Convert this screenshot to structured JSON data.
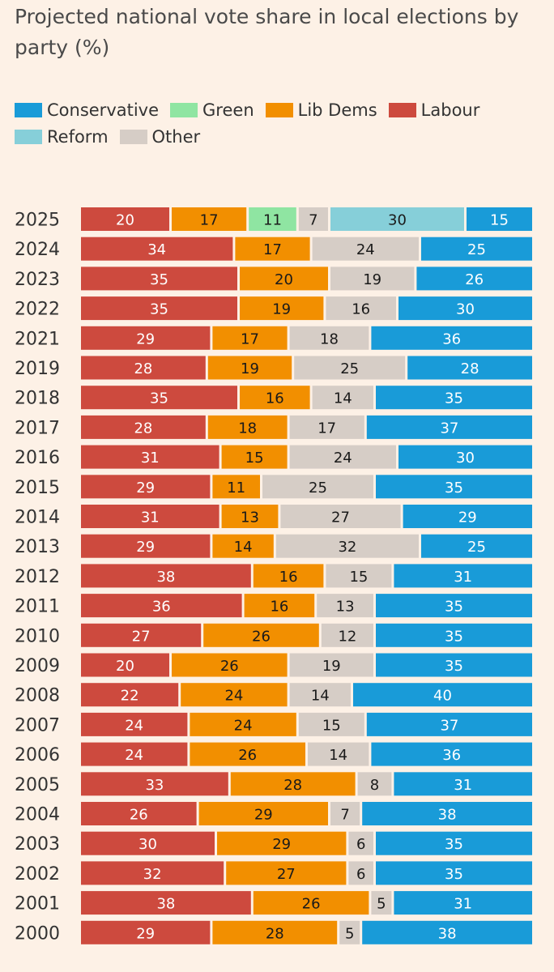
{
  "title": "Projected national vote share in local elections by party (%)",
  "colors": {
    "Conservative": "#199bd8",
    "Green": "#8fe5a2",
    "Lib Dems": "#f28f00",
    "Labour": "#cd4a3e",
    "Reform": "#86cfd9",
    "Other": "#d6cdc6"
  },
  "legend": [
    "Conservative",
    "Green",
    "Lib Dems",
    "Labour",
    "Reform",
    "Other"
  ],
  "chart_data": {
    "type": "bar",
    "orientation": "horizontal",
    "stacked": true,
    "title": "Projected national vote share in local elections by party (%)",
    "legend_position": "top",
    "grid": false,
    "categories": [
      "2025",
      "2024",
      "2023",
      "2022",
      "2021",
      "2019",
      "2018",
      "2017",
      "2016",
      "2015",
      "2014",
      "2013",
      "2012",
      "2011",
      "2010",
      "2009",
      "2008",
      "2007",
      "2006",
      "2005",
      "2004",
      "2003",
      "2002",
      "2001",
      "2000"
    ],
    "stack_order": [
      "Labour",
      "Lib Dems",
      "Green",
      "Other",
      "Reform",
      "Conservative"
    ],
    "series": [
      {
        "name": "Labour",
        "values": [
          20,
          34,
          35,
          35,
          29,
          28,
          35,
          28,
          31,
          29,
          31,
          29,
          38,
          36,
          27,
          20,
          22,
          24,
          24,
          33,
          26,
          30,
          32,
          38,
          29
        ]
      },
      {
        "name": "Lib Dems",
        "values": [
          17,
          17,
          20,
          19,
          17,
          19,
          16,
          18,
          15,
          11,
          13,
          14,
          16,
          16,
          26,
          26,
          24,
          24,
          26,
          28,
          29,
          29,
          27,
          26,
          28
        ]
      },
      {
        "name": "Green",
        "values": [
          11,
          null,
          null,
          null,
          null,
          null,
          null,
          null,
          null,
          null,
          null,
          null,
          null,
          null,
          null,
          null,
          null,
          null,
          null,
          null,
          null,
          null,
          null,
          null,
          null
        ]
      },
      {
        "name": "Other",
        "values": [
          7,
          24,
          19,
          16,
          18,
          25,
          14,
          17,
          24,
          25,
          27,
          32,
          15,
          13,
          12,
          19,
          14,
          15,
          14,
          8,
          7,
          6,
          6,
          5,
          5
        ]
      },
      {
        "name": "Reform",
        "values": [
          30,
          null,
          null,
          null,
          null,
          null,
          null,
          null,
          null,
          null,
          null,
          null,
          null,
          null,
          null,
          null,
          null,
          null,
          null,
          null,
          null,
          null,
          null,
          null,
          null
        ]
      },
      {
        "name": "Conservative",
        "values": [
          15,
          25,
          26,
          30,
          36,
          28,
          35,
          37,
          30,
          35,
          29,
          25,
          31,
          35,
          35,
          35,
          40,
          37,
          36,
          31,
          38,
          35,
          35,
          31,
          38
        ]
      }
    ]
  }
}
